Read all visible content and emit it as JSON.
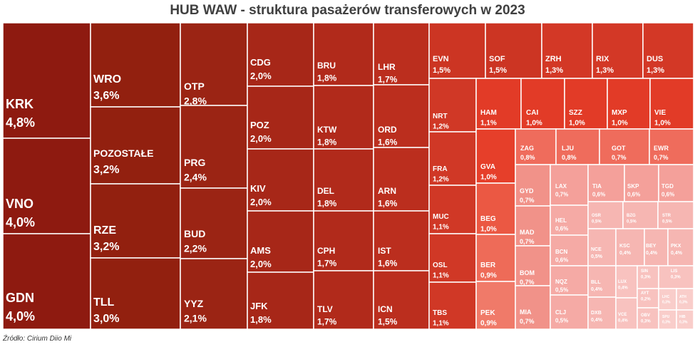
{
  "title": "HUB WAW - struktura pasażerów transferowych w 2023",
  "source": "Źródło: Cirium Diio Mi",
  "chart_data": {
    "type": "treemap",
    "title": "HUB WAW - struktura pasażerów transferowych w 2023",
    "unit": "%",
    "items": [
      {
        "code": "KRK",
        "label": "4,8%",
        "value": 4.8
      },
      {
        "code": "VNO",
        "label": "4,0%",
        "value": 4.0
      },
      {
        "code": "GDN",
        "label": "4,0%",
        "value": 4.0
      },
      {
        "code": "WRO",
        "label": "3,6%",
        "value": 3.6
      },
      {
        "code": "POZOSTAŁE",
        "label": "3,2%",
        "value": 3.2
      },
      {
        "code": "RZE",
        "label": "3,2%",
        "value": 3.2
      },
      {
        "code": "TLL",
        "label": "3,0%",
        "value": 3.0
      },
      {
        "code": "OTP",
        "label": "2,8%",
        "value": 2.8
      },
      {
        "code": "PRG",
        "label": "2,4%",
        "value": 2.4
      },
      {
        "code": "BUD",
        "label": "2,2%",
        "value": 2.2
      },
      {
        "code": "YYZ",
        "label": "2,1%",
        "value": 2.1
      },
      {
        "code": "CDG",
        "label": "2,0%",
        "value": 2.0
      },
      {
        "code": "POZ",
        "label": "2,0%",
        "value": 2.0
      },
      {
        "code": "KIV",
        "label": "2,0%",
        "value": 2.0
      },
      {
        "code": "AMS",
        "label": "2,0%",
        "value": 2.0
      },
      {
        "code": "JFK",
        "label": "1,8%",
        "value": 1.8
      },
      {
        "code": "BRU",
        "label": "1,8%",
        "value": 1.8
      },
      {
        "code": "KTW",
        "label": "1,8%",
        "value": 1.8
      },
      {
        "code": "DEL",
        "label": "1,8%",
        "value": 1.8
      },
      {
        "code": "CPH",
        "label": "1,7%",
        "value": 1.7
      },
      {
        "code": "TLV",
        "label": "1,7%",
        "value": 1.7
      },
      {
        "code": "LHR",
        "label": "1,7%",
        "value": 1.7
      },
      {
        "code": "ORD",
        "label": "1,6%",
        "value": 1.6
      },
      {
        "code": "ARN",
        "label": "1,6%",
        "value": 1.6
      },
      {
        "code": "IST",
        "label": "1,6%",
        "value": 1.6
      },
      {
        "code": "ICN",
        "label": "1,5%",
        "value": 1.5
      },
      {
        "code": "EVN",
        "label": "1,5%",
        "value": 1.5
      },
      {
        "code": "SOF",
        "label": "1,5%",
        "value": 1.5
      },
      {
        "code": "ZRH",
        "label": "1,3%",
        "value": 1.3
      },
      {
        "code": "RIX",
        "label": "1,3%",
        "value": 1.3
      },
      {
        "code": "DUS",
        "label": "1,3%",
        "value": 1.3
      },
      {
        "code": "NRT",
        "label": "1,2%",
        "value": 1.2
      },
      {
        "code": "FRA",
        "label": "1,2%",
        "value": 1.2
      },
      {
        "code": "MUC",
        "label": "1,1%",
        "value": 1.1
      },
      {
        "code": "OSL",
        "label": "1,1%",
        "value": 1.1
      },
      {
        "code": "TBS",
        "label": "1,1%",
        "value": 1.1
      },
      {
        "code": "HAM",
        "label": "1,1%",
        "value": 1.1
      },
      {
        "code": "CAI",
        "label": "1,0%",
        "value": 1.0
      },
      {
        "code": "SZZ",
        "label": "1,0%",
        "value": 1.0
      },
      {
        "code": "MXP",
        "label": "1,0%",
        "value": 1.0
      },
      {
        "code": "VIE",
        "label": "1,0%",
        "value": 1.0
      },
      {
        "code": "GVA",
        "label": "1,0%",
        "value": 1.0
      },
      {
        "code": "BEG",
        "label": "1,0%",
        "value": 1.0
      },
      {
        "code": "BER",
        "label": "0,9%",
        "value": 0.9
      },
      {
        "code": "PEK",
        "label": "0,9%",
        "value": 0.9
      },
      {
        "code": "ZAG",
        "label": "0,8%",
        "value": 0.8
      },
      {
        "code": "LJU",
        "label": "0,8%",
        "value": 0.8
      },
      {
        "code": "GOT",
        "label": "0,7%",
        "value": 0.7
      },
      {
        "code": "EWR",
        "label": "0,7%",
        "value": 0.7
      },
      {
        "code": "GYD",
        "label": "0,7%",
        "value": 0.7
      },
      {
        "code": "MAD",
        "label": "0,7%",
        "value": 0.7
      },
      {
        "code": "BOM",
        "label": "0,7%",
        "value": 0.7
      },
      {
        "code": "MIA",
        "label": "0,7%",
        "value": 0.7
      },
      {
        "code": "LAX",
        "label": "0,7%",
        "value": 0.7
      },
      {
        "code": "TIA",
        "label": "0,6%",
        "value": 0.6
      },
      {
        "code": "SKP",
        "label": "0,6%",
        "value": 0.6
      },
      {
        "code": "TGD",
        "label": "0,6%",
        "value": 0.6
      },
      {
        "code": "HEL",
        "label": "0,6%",
        "value": 0.6
      },
      {
        "code": "BCN",
        "label": "0,6%",
        "value": 0.6
      },
      {
        "code": "NQZ",
        "label": "0,5%",
        "value": 0.5
      },
      {
        "code": "CLJ",
        "label": "0,5%",
        "value": 0.5
      },
      {
        "code": "OSR",
        "label": "0,5%",
        "value": 0.5
      },
      {
        "code": "BZG",
        "label": "0,5%",
        "value": 0.5
      },
      {
        "code": "STR",
        "label": "0,5%",
        "value": 0.5
      },
      {
        "code": "NCE",
        "label": "0,5%",
        "value": 0.5
      },
      {
        "code": "BLL",
        "label": "0,4%",
        "value": 0.4
      },
      {
        "code": "DXB",
        "label": "0,4%",
        "value": 0.4
      },
      {
        "code": "KSC",
        "label": "0,4%",
        "value": 0.4
      },
      {
        "code": "BEY",
        "label": "0,4%",
        "value": 0.4
      },
      {
        "code": "PKX",
        "label": "0,4%",
        "value": 0.4
      },
      {
        "code": "LUX",
        "label": "0,4%",
        "value": 0.4
      },
      {
        "code": "VCE",
        "label": "0,4%",
        "value": 0.4
      },
      {
        "code": "SIN",
        "label": "0,3%",
        "value": 0.3
      },
      {
        "code": "AYT",
        "label": "0,2%",
        "value": 0.2
      },
      {
        "code": "OBV",
        "label": "0,3%",
        "value": 0.3
      },
      {
        "code": "LIS",
        "label": "0,3%",
        "value": 0.3
      },
      {
        "code": "LHC",
        "label": "0,3%",
        "value": 0.3
      },
      {
        "code": "ATH",
        "label": "0,3%",
        "value": 0.3
      },
      {
        "code": "SPU",
        "label": "0,3%",
        "value": 0.3
      },
      {
        "code": "HIB",
        "label": "0,3%",
        "value": 0.3
      }
    ]
  }
}
